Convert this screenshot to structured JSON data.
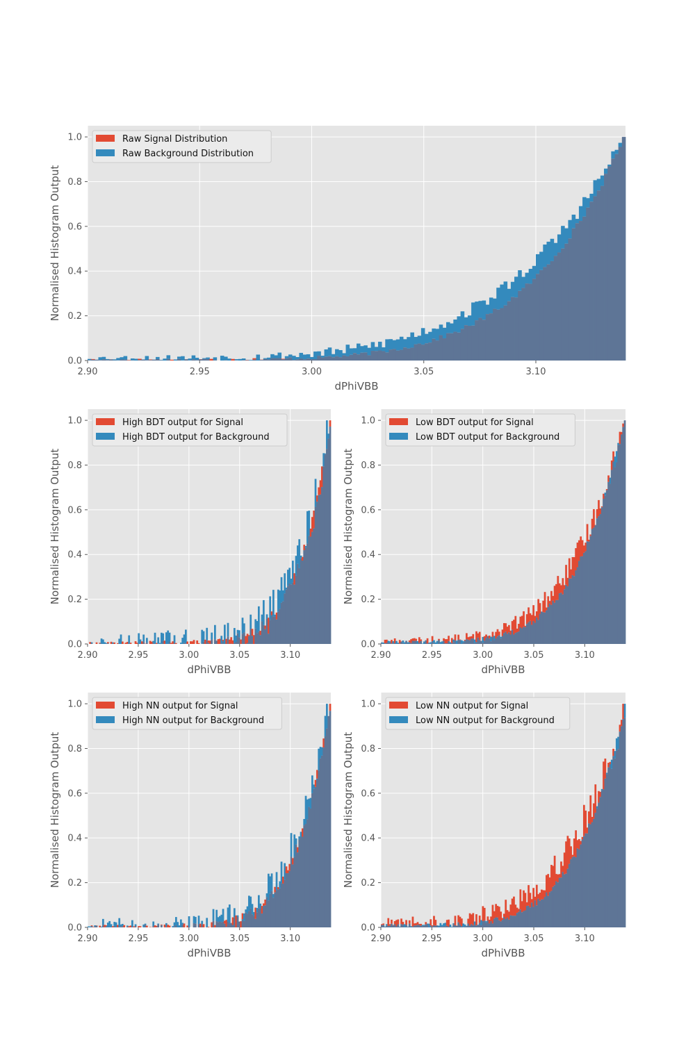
{
  "colors": {
    "signal": "#e24a33",
    "background": "#348abd",
    "overlap": "#5e7596",
    "panel_bg": "#e5e5e5",
    "grid": "#ffffff",
    "tick_text": "#555555",
    "legend_bg": "#ebebeb",
    "legend_border": "#cccccc"
  },
  "chart_data": [
    {
      "type": "histogram",
      "xlabel": "dPhiVBB",
      "ylabel": "Normalised Histogram Output",
      "xlim": [
        2.9,
        3.14
      ],
      "ylim": [
        0,
        1.05
      ],
      "xticks": [
        "2.90",
        "2.95",
        "3.00",
        "3.05",
        "3.10"
      ],
      "yticks": [
        "0.0",
        "0.2",
        "0.4",
        "0.6",
        "0.8",
        "1.0"
      ],
      "grid": true,
      "legend_position": "top-left",
      "series": [
        {
          "name": "Raw Signal Distribution",
          "color": "#e24a33",
          "scale": 0.004,
          "exponent": 5.5,
          "noise": 0.01
        },
        {
          "name": "Raw Background Distribution",
          "color": "#348abd",
          "scale": 0.012,
          "exponent": 4.5,
          "noise": 0.025
        }
      ]
    },
    {
      "type": "histogram",
      "xlabel": "dPhiVBB",
      "ylabel": "Normalised Histogram Output",
      "xlim": [
        2.9,
        3.14
      ],
      "ylim": [
        0,
        1.05
      ],
      "xticks": [
        "2.90",
        "2.95",
        "3.00",
        "3.05",
        "3.10"
      ],
      "yticks": [
        "0.0",
        "0.2",
        "0.4",
        "0.6",
        "0.8",
        "1.0"
      ],
      "grid": true,
      "legend_position": "top-left",
      "series": [
        {
          "name": "High BDT output for Signal",
          "color": "#e24a33",
          "scale": 0.001,
          "exponent": 7.5,
          "noise": 0.02
        },
        {
          "name": "High BDT output for Background",
          "color": "#348abd",
          "scale": 0.002,
          "exponent": 7.0,
          "noise": 0.08
        }
      ]
    },
    {
      "type": "histogram",
      "xlabel": "dPhiVBB",
      "ylabel": "Normalised Histogram Output",
      "xlim": [
        2.9,
        3.14
      ],
      "ylim": [
        0,
        1.05
      ],
      "xticks": [
        "2.90",
        "2.95",
        "3.00",
        "3.05",
        "3.10"
      ],
      "yticks": [
        "0.0",
        "0.2",
        "0.4",
        "0.6",
        "0.8",
        "1.0"
      ],
      "grid": true,
      "legend_position": "top-left",
      "series": [
        {
          "name": "Low BDT output for Signal",
          "color": "#e24a33",
          "scale": 0.01,
          "exponent": 4.2,
          "noise": 0.04
        },
        {
          "name": "Low BDT output for Background",
          "color": "#348abd",
          "scale": 0.008,
          "exponent": 5.0,
          "noise": 0.015
        }
      ]
    },
    {
      "type": "histogram",
      "xlabel": "dPhiVBB",
      "ylabel": "Normalised Histogram Output",
      "xlim": [
        2.9,
        3.14
      ],
      "ylim": [
        0,
        1.05
      ],
      "xticks": [
        "2.90",
        "2.95",
        "3.00",
        "3.05",
        "3.10"
      ],
      "yticks": [
        "0.0",
        "0.2",
        "0.4",
        "0.6",
        "0.8",
        "1.0"
      ],
      "grid": true,
      "legend_position": "top-left",
      "series": [
        {
          "name": "High NN output for Signal",
          "color": "#e24a33",
          "scale": 0.002,
          "exponent": 7.0,
          "noise": 0.02
        },
        {
          "name": "High NN output for Background",
          "color": "#348abd",
          "scale": 0.004,
          "exponent": 6.5,
          "noise": 0.07
        }
      ]
    },
    {
      "type": "histogram",
      "xlabel": "dPhiVBB",
      "ylabel": "Normalised Histogram Output",
      "xlim": [
        2.9,
        3.14
      ],
      "ylim": [
        0,
        1.05
      ],
      "xticks": [
        "2.90",
        "2.95",
        "3.00",
        "3.05",
        "3.10"
      ],
      "yticks": [
        "0.0",
        "0.2",
        "0.4",
        "0.6",
        "0.8",
        "1.0"
      ],
      "grid": true,
      "legend_position": "top-left",
      "series": [
        {
          "name": "Low NN output for Signal",
          "color": "#e24a33",
          "scale": 0.02,
          "exponent": 3.8,
          "noise": 0.06
        },
        {
          "name": "Low NN output for Background",
          "color": "#348abd",
          "scale": 0.01,
          "exponent": 5.0,
          "noise": 0.015
        }
      ]
    }
  ]
}
